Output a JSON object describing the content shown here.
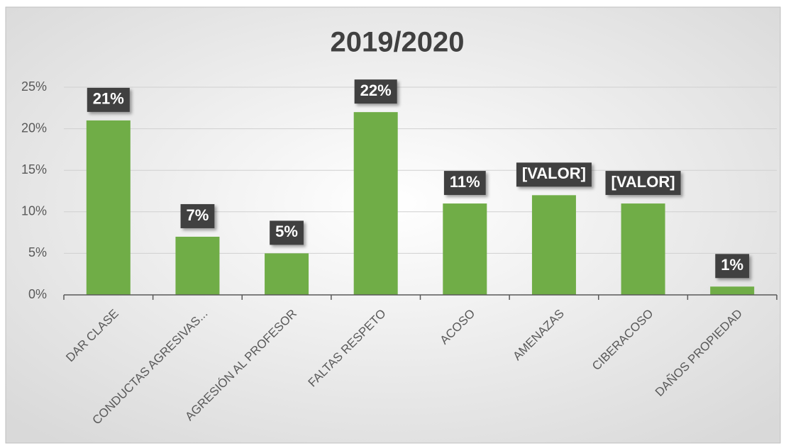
{
  "chart_data": {
    "type": "bar",
    "title": "2019/2020",
    "categories": [
      "DAR CLASE",
      "CONDUCTAS AGRESIVAS...",
      "AGRESIÓN AL PROFESOR",
      "FALTAS RESPETO",
      "ACOSO",
      "AMENAZAS",
      "CIBERACOSO",
      "DAÑOS PROPIEDAD"
    ],
    "values": [
      21,
      7,
      5,
      22,
      11,
      12,
      11,
      1
    ],
    "value_labels": [
      "21%",
      "7%",
      "5%",
      "22%",
      "11%",
      "[VALOR]",
      "[VALOR]",
      "1%"
    ],
    "color": "#70ad47",
    "ylim": [
      0,
      25
    ],
    "yticks": [
      {
        "value": 0,
        "label": "0%"
      },
      {
        "value": 5,
        "label": "5%"
      },
      {
        "value": 10,
        "label": "10%"
      },
      {
        "value": 15,
        "label": "15%"
      },
      {
        "value": 20,
        "label": "20%"
      },
      {
        "value": 25,
        "label": "25%"
      }
    ],
    "grid": true
  }
}
